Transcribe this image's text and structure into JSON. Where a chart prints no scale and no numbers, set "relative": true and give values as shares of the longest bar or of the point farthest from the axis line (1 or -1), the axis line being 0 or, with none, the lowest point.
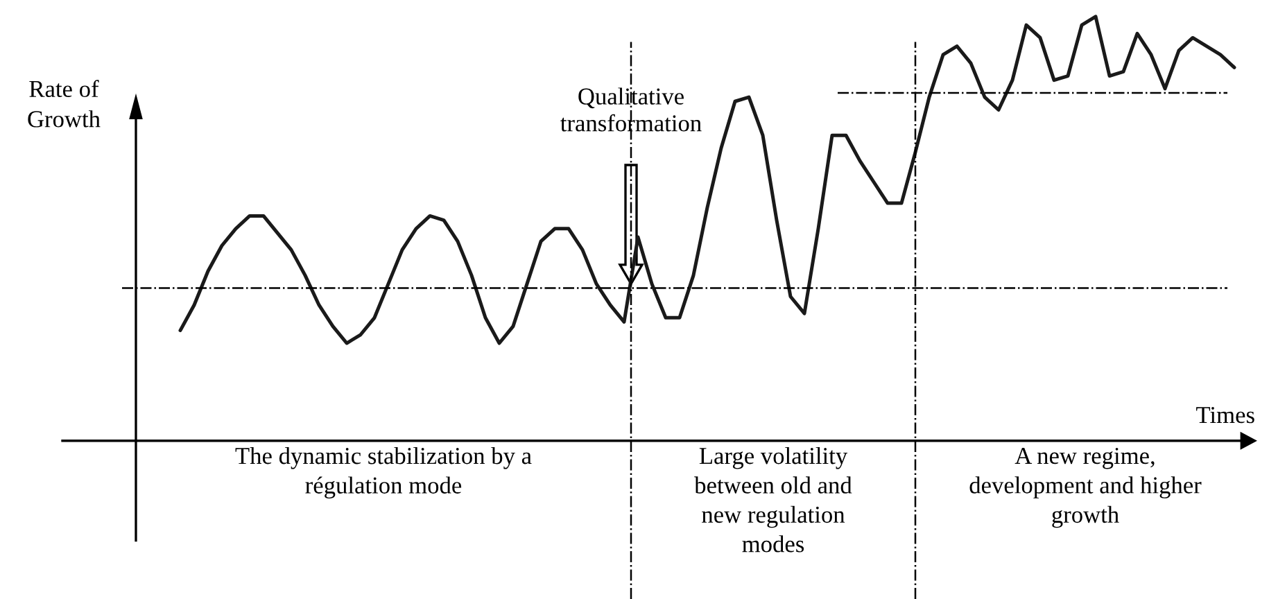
{
  "chart_data": {
    "type": "line",
    "relative": true,
    "xlabel": "Times",
    "ylabel": "Rate of\nGrowth",
    "categories": [
      null,
      null,
      null,
      null,
      null,
      null,
      null,
      null,
      null,
      null,
      null,
      null,
      null,
      null,
      null,
      null,
      null,
      null,
      null,
      null,
      null,
      null,
      null,
      null,
      null,
      null,
      null,
      null,
      null,
      null,
      null,
      null,
      null,
      null,
      null,
      null,
      null,
      null,
      null,
      null,
      null,
      null,
      null,
      null,
      null,
      null,
      null,
      null,
      null,
      null,
      null,
      null,
      null,
      null,
      null,
      null,
      null,
      null,
      null,
      null,
      null,
      null,
      null,
      null,
      null,
      null,
      null,
      null,
      null,
      null,
      null,
      null,
      null,
      null,
      null,
      null,
      null
    ],
    "series": [
      {
        "color": "#1a1a1a",
        "values": [
          0.26,
          0.32,
          0.4,
          0.46,
          0.5,
          0.53,
          0.53,
          0.49,
          0.45,
          0.39,
          0.32,
          0.27,
          0.23,
          0.25,
          0.29,
          0.37,
          0.45,
          0.5,
          0.53,
          0.52,
          0.47,
          0.39,
          0.29,
          0.23,
          0.27,
          0.37,
          0.47,
          0.5,
          0.5,
          0.45,
          0.37,
          0.32,
          0.28,
          0.48,
          0.37,
          0.29,
          0.29,
          0.39,
          0.55,
          0.69,
          0.8,
          0.81,
          0.72,
          0.52,
          0.34,
          0.3,
          0.5,
          0.72,
          0.72,
          0.66,
          0.61,
          0.56,
          0.56,
          0.68,
          0.81,
          0.91,
          0.93,
          0.89,
          0.81,
          0.78,
          0.85,
          0.98,
          0.95,
          0.85,
          0.86,
          0.98,
          1.0,
          0.86,
          0.87,
          0.96,
          0.91,
          0.83,
          0.92,
          0.95,
          0.93,
          0.91,
          0.88
        ]
      }
    ],
    "ref_lines": [
      {
        "axis": "y",
        "value": 0.36,
        "label": null,
        "color": "#000000",
        "line_style": "dashdot"
      },
      {
        "axis": "y",
        "value": 0.82,
        "label": null,
        "color": "#000000",
        "line_style": "dashdot"
      }
    ],
    "annotations": [
      "Qualitative\ntransformation",
      "The dynamic stabilization by a\nrégulation mode",
      "Large volatility\nbetween old and\nnew regulation\nmodes",
      "A new regime,\ndevelopment and higher\ngrowth"
    ]
  }
}
